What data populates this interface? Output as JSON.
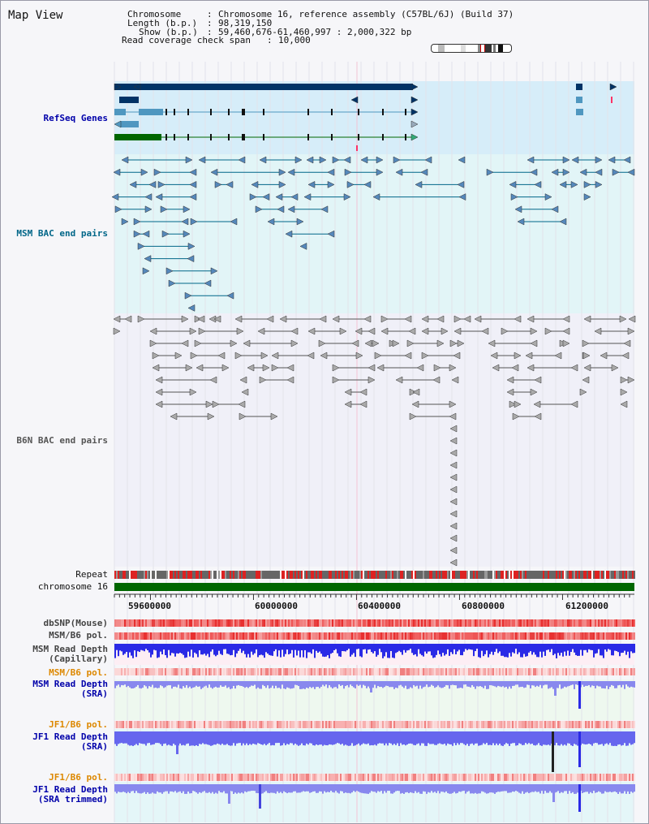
{
  "view_title": "Map View",
  "header": {
    "chromosome_key": "Chromosome",
    "chromosome_value": "Chromosome 16, reference assembly (C57BL/6J) (Build 37)",
    "length_key": "Length (b.p.)",
    "length_value": "98,319,150",
    "show_key": "Show (b.p.)",
    "show_value": "59,460,676-61,460,997 : 2,000,322 bp",
    "coverage_key": "Read coverage check span",
    "coverage_value": "10,000"
  },
  "tracks": {
    "refseq": "RefSeq Genes",
    "msm_bac": "MSM BAC end pairs",
    "b6n_bac": "B6N BAC end pairs",
    "repeat": "Repeat",
    "chromosome": "chromosome 16",
    "dbsnp": "dbSNP(Mouse)",
    "msm_b6_pol_1": "MSM/B6 pol.",
    "msm_read_depth_cap": "MSM Read Depth\n(Capillary)",
    "msm_b6_pol_2": "MSM/B6 pol.",
    "msm_read_depth_sra": "MSM Read Depth\n(SRA)",
    "jf1_b6_pol_1": "JF1/B6 pol.",
    "jf1_read_depth_sra": "JF1 Read Depth\n(SRA)",
    "jf1_b6_pol_2": "JF1/B6 pol.",
    "jf1_read_depth_trim": "JF1 Read Depth\n(SRA trimmed)"
  },
  "ruler": {
    "labels": [
      "59600000",
      "60000000",
      "60400000",
      "60800000",
      "61200000"
    ]
  },
  "colors": {
    "refseq_bg": "#d8eefa",
    "msm_bac_bg": "#e4f6f8",
    "b6n_bg": "#f1f1f8",
    "refseq_dark": "#003366",
    "refseq_light": "#4f97c0",
    "refseq_green": "#006600",
    "msm_bac_line": "#006688",
    "b6n_line": "#555555",
    "chromosome_bar": "#006600",
    "depth_blue": "#1a1ae0",
    "label_blue": "#0000aa",
    "label_orange": "#dd8800",
    "label_teal": "#006688"
  }
}
